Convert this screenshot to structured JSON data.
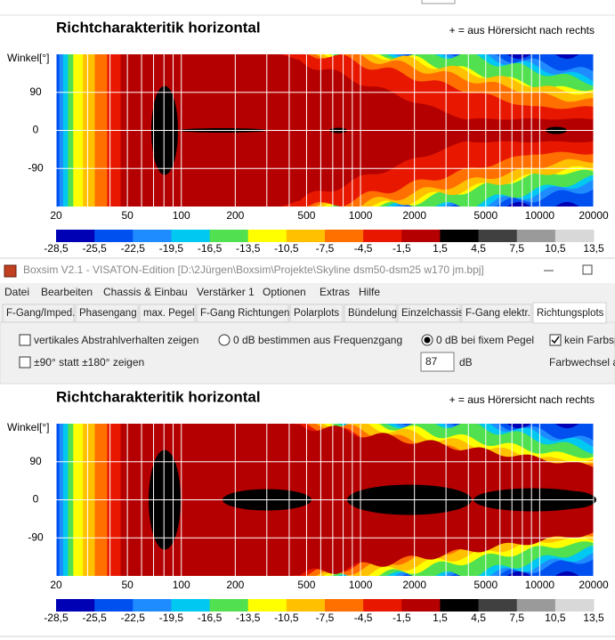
{
  "top_panel": {
    "title": "Richtcharakteritik horizontal",
    "note": "+ = aus Hörersicht nach rechts",
    "y_axis_label": "Winkel[°]",
    "y_ticks": [
      "90",
      "0",
      "-90"
    ],
    "x_ticks": [
      "20",
      "50",
      "100",
      "200",
      "500",
      "1000",
      "2000",
      "5000",
      "10000",
      "20000"
    ],
    "colorbar_labels": [
      "-28,5",
      "-25,5",
      "-22,5",
      "-19,5",
      "-16,5",
      "-13,5",
      "-10,5",
      "-7,5",
      "-4,5",
      "-1,5",
      "1,5",
      "4,5",
      "7,5",
      "10,5",
      "13,5"
    ]
  },
  "colorbar_colors": [
    "#0000b4",
    "#0050f0",
    "#1e8cff",
    "#00c8f0",
    "#50e050",
    "#ffff00",
    "#ffc000",
    "#ff7000",
    "#e81800",
    "#b40000",
    "#000000",
    "#404040",
    "#9a9a9a",
    "#d8d8d8"
  ],
  "window": {
    "title": "Boxsim V2.1 - VISATON-Edition [D:\\2Jürgen\\Boxsim\\Projekte\\Skyline dsm50-dsm25 w170 jm.bpj]",
    "menu": [
      "Datei",
      "Bearbeiten",
      "Chassis & Einbau",
      "Verstärker 1",
      "Optionen",
      "Extras",
      "Hilfe"
    ],
    "tabs": [
      "F-Gang/Imped.",
      "Phasengang",
      "max. Pegel",
      "F-Gang Richtungen",
      "Polarplots",
      "Bündelung",
      "Einzelchassis",
      "F-Gang elektr.",
      "Richtungsplots"
    ],
    "active_tab": 8
  },
  "options": {
    "vertical": {
      "label": "vertikales Abstrahlverhalten zeigen",
      "checked": false
    },
    "range90": {
      "label": "±90° statt ±180° zeigen",
      "checked": false
    },
    "zero_from_response": {
      "label": "0 dB bestimmen aus Frequenzgang",
      "selected": false
    },
    "zero_fixed": {
      "label": "0 dB bei fixem Pegel",
      "selected": true
    },
    "level_value": "87",
    "level_unit": "dB",
    "no_color_jump": {
      "label": "kein Farbspr",
      "checked": true
    },
    "color_change": "Farbwechsel al"
  },
  "bottom_panel": {
    "title": "Richtcharakteritik horizontal",
    "note": "+ = aus Hörersicht nach rechts",
    "y_axis_label": "Winkel[°]",
    "y_ticks": [
      "90",
      "0",
      "-90"
    ],
    "x_ticks": [
      "20",
      "50",
      "100",
      "200",
      "500",
      "1000",
      "2000",
      "5000",
      "10000",
      "20000"
    ],
    "colorbar_labels": [
      "-28,5",
      "-25,5",
      "-22,5",
      "-19,5",
      "-16,5",
      "-13,5",
      "-10,5",
      "-7,5",
      "-4,5",
      "-1,5",
      "1,5",
      "4,5",
      "7,5",
      "10,5",
      "13,5"
    ]
  }
}
